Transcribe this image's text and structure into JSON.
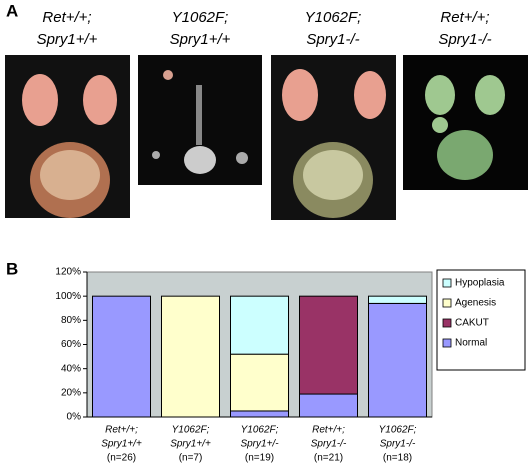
{
  "panel_labels": [
    "A",
    "B"
  ],
  "images": [
    {
      "title": [
        "Ret+/+;",
        "Spry1+/+"
      ]
    },
    {
      "title": [
        "Y1062F;",
        "Spry1+/+"
      ]
    },
    {
      "title": [
        "Y1062F;",
        "Spry1-/-"
      ]
    },
    {
      "title": [
        "Ret+/+;",
        "Spry1-/-"
      ]
    }
  ],
  "chart_data": {
    "type": "stacked-bar",
    "categories": [
      [
        "Ret+/+;",
        "Spry1+/+",
        "(n=26)"
      ],
      [
        "Y1062F;",
        "Spry1+/+",
        "(n=7)"
      ],
      [
        "Y1062F;",
        "Spry1+/-",
        "(n=19)"
      ],
      [
        "Ret+/+;",
        "Spry1-/-",
        "(n=21)"
      ],
      [
        "Y1062F;",
        "Spry1-/-",
        "(n=18)"
      ]
    ],
    "series": [
      {
        "name": "Normal",
        "color": "#9999ff",
        "values": [
          100,
          0,
          5,
          19,
          94
        ]
      },
      {
        "name": "CAKUT",
        "color": "#993366",
        "values": [
          0,
          0,
          0,
          81,
          0
        ]
      },
      {
        "name": "Agenesis",
        "color": "#ffffcc",
        "values": [
          0,
          100,
          47,
          0,
          0
        ]
      },
      {
        "name": "Hypoplasia",
        "color": "#ccffff",
        "values": [
          0,
          0,
          48,
          0,
          6
        ]
      }
    ],
    "ylim": [
      0,
      120
    ],
    "yticks": [
      {
        "value": 0,
        "label": "0%"
      },
      {
        "value": 20,
        "label": "20%"
      },
      {
        "value": 40,
        "label": "40%"
      },
      {
        "value": 60,
        "label": "60%"
      },
      {
        "value": 80,
        "label": "80%"
      },
      {
        "value": 100,
        "label": "100%"
      },
      {
        "value": 120,
        "label": "120%"
      }
    ],
    "legend": "right"
  }
}
